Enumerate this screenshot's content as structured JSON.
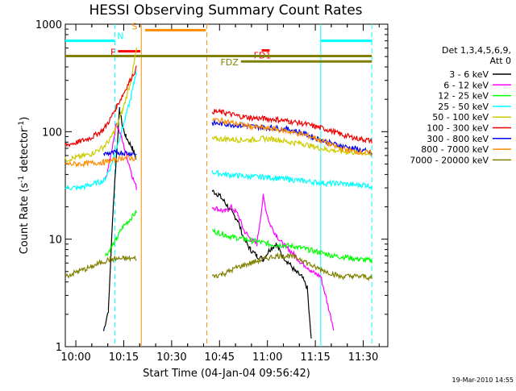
{
  "chart_data": {
    "type": "line",
    "title": "HESSI Observing Summary Count Rates",
    "xlabel": "Start Time (04-Jan-04 09:56:42)",
    "ylabel": "Count Rate (s",
    "ylabel_sup": "-1",
    "ylabel_tail": " detector",
    "ylabel_sup2": "-1",
    "ylabel_close": ")",
    "y_scale": "log",
    "ylim": [
      1,
      1000
    ],
    "xlim_minutes": [
      0,
      101
    ],
    "xlim_start": "09:56:42",
    "x_ticks": [
      "10:00",
      "10:15",
      "10:30",
      "10:45",
      "11:00",
      "11:15",
      "11:30"
    ],
    "x_tick_minutes": [
      3.3,
      18.3,
      33.3,
      48.3,
      63.3,
      78.3,
      93.3
    ],
    "y_ticks": [
      "1",
      "10",
      "100",
      "1000"
    ],
    "y_tick_values": [
      1,
      10,
      100,
      1000
    ],
    "legend_header": [
      "Det 1,3,4,5,6,9,",
      "Att 0"
    ],
    "legend_placement": "right",
    "timestamp": "19-Mar-2010 14:55",
    "series": [
      {
        "name": "3 - 6 keV",
        "color": "#000000",
        "points": [
          [
            12,
            1.4
          ],
          [
            13.5,
            2.2
          ],
          [
            15,
            20
          ],
          [
            16,
            60
          ],
          [
            17,
            160
          ],
          [
            18,
            110
          ],
          [
            19,
            90
          ],
          [
            21,
            70
          ],
          [
            22.3,
            55
          ],
          [
            46,
            28
          ],
          [
            48,
            26
          ],
          [
            50,
            22
          ],
          [
            52,
            18
          ],
          [
            54,
            15
          ],
          [
            56,
            10
          ],
          [
            58,
            8
          ],
          [
            60,
            7
          ],
          [
            62,
            6.5
          ],
          [
            64,
            8
          ],
          [
            66,
            9
          ],
          [
            68,
            7
          ],
          [
            70,
            6
          ],
          [
            72,
            5
          ],
          [
            74,
            4.5
          ],
          [
            75.8,
            3.5
          ],
          [
            76.5,
            1.8
          ],
          [
            77,
            1.2
          ]
        ]
      },
      {
        "name": "6 - 12 keV",
        "color": "#ff00ff",
        "points": [
          [
            12.5,
            35
          ],
          [
            14,
            55
          ],
          [
            16,
            120
          ],
          [
            17.5,
            90
          ],
          [
            18.5,
            70
          ],
          [
            20,
            50
          ],
          [
            21,
            38
          ],
          [
            22.3,
            30
          ],
          [
            46,
            20
          ],
          [
            48,
            19
          ],
          [
            50,
            18
          ],
          [
            52,
            20
          ],
          [
            54,
            17
          ],
          [
            56,
            12
          ],
          [
            58,
            10
          ],
          [
            60,
            9
          ],
          [
            62,
            25
          ],
          [
            63,
            18
          ],
          [
            64,
            14
          ],
          [
            66,
            11
          ],
          [
            68,
            9
          ],
          [
            70,
            8
          ],
          [
            72,
            7
          ],
          [
            74,
            6
          ],
          [
            76,
            5.5
          ],
          [
            77,
            5
          ],
          [
            80,
            4.5
          ],
          [
            84,
            1.5
          ]
        ]
      },
      {
        "name": "12 - 25 keV",
        "color": "#00ff00",
        "points": [
          [
            12.5,
            7
          ],
          [
            14,
            8
          ],
          [
            16,
            10
          ],
          [
            18,
            13
          ],
          [
            20,
            15
          ],
          [
            22.3,
            18
          ],
          [
            46,
            12
          ],
          [
            48,
            11.5
          ],
          [
            50,
            11
          ],
          [
            52,
            10.5
          ],
          [
            56,
            10
          ],
          [
            60,
            9.5
          ],
          [
            64,
            9
          ],
          [
            68,
            8.8
          ],
          [
            72,
            8.5
          ],
          [
            76,
            8
          ],
          [
            80,
            7.5
          ],
          [
            84,
            7
          ],
          [
            88,
            6.8
          ],
          [
            92,
            6.5
          ],
          [
            96,
            6.3
          ]
        ]
      },
      {
        "name": "25 - 50 keV",
        "color": "#00ffff",
        "points": [
          [
            0,
            30
          ],
          [
            4,
            30
          ],
          [
            8,
            32
          ],
          [
            12,
            35
          ],
          [
            14,
            45
          ],
          [
            16,
            70
          ],
          [
            18,
            110
          ],
          [
            20,
            180
          ],
          [
            21.5,
            280
          ],
          [
            22.3,
            380
          ],
          [
            46,
            42
          ],
          [
            50,
            40
          ],
          [
            54,
            39
          ],
          [
            58,
            38
          ],
          [
            62,
            38
          ],
          [
            66,
            37
          ],
          [
            70,
            36
          ],
          [
            74,
            35
          ],
          [
            78,
            34
          ],
          [
            82,
            33
          ],
          [
            86,
            33
          ],
          [
            90,
            32
          ],
          [
            94,
            32
          ],
          [
            96,
            31
          ]
        ]
      },
      {
        "name": "50 - 100 keV",
        "color": "#cccc00",
        "points": [
          [
            0,
            55
          ],
          [
            4,
            58
          ],
          [
            8,
            62
          ],
          [
            12,
            72
          ],
          [
            14,
            85
          ],
          [
            16,
            110
          ],
          [
            18,
            160
          ],
          [
            20,
            260
          ],
          [
            21.5,
            420
          ],
          [
            22.3,
            600
          ],
          [
            46,
            85
          ],
          [
            50,
            86
          ],
          [
            54,
            84
          ],
          [
            58,
            84
          ],
          [
            62,
            86
          ],
          [
            66,
            85
          ],
          [
            70,
            80
          ],
          [
            74,
            78
          ],
          [
            78,
            72
          ],
          [
            82,
            68
          ],
          [
            86,
            66
          ],
          [
            90,
            64
          ],
          [
            94,
            63
          ],
          [
            96,
            62
          ]
        ]
      },
      {
        "name": "100 - 300 keV",
        "color": "#ee0000",
        "points": [
          [
            0,
            75
          ],
          [
            4,
            80
          ],
          [
            8,
            88
          ],
          [
            10,
            95
          ],
          [
            12,
            105
          ],
          [
            14,
            130
          ],
          [
            16,
            170
          ],
          [
            18,
            220
          ],
          [
            20,
            290
          ],
          [
            22.3,
            390
          ],
          [
            46,
            155
          ],
          [
            50,
            150
          ],
          [
            54,
            140
          ],
          [
            58,
            135
          ],
          [
            62,
            132
          ],
          [
            66,
            130
          ],
          [
            70,
            125
          ],
          [
            74,
            120
          ],
          [
            78,
            112
          ],
          [
            82,
            105
          ],
          [
            86,
            95
          ],
          [
            90,
            88
          ],
          [
            94,
            84
          ],
          [
            96,
            82
          ]
        ]
      },
      {
        "name": "300 - 800 keV",
        "color": "#0000ee",
        "points": [
          [
            12,
            62
          ],
          [
            14,
            63
          ],
          [
            16,
            64
          ],
          [
            18,
            64
          ],
          [
            20,
            63
          ],
          [
            22.3,
            62
          ],
          [
            46,
            120
          ],
          [
            50,
            118
          ],
          [
            54,
            115
          ],
          [
            58,
            112
          ],
          [
            62,
            110
          ],
          [
            66,
            108
          ],
          [
            70,
            105
          ],
          [
            74,
            98
          ],
          [
            78,
            88
          ],
          [
            82,
            80
          ],
          [
            86,
            74
          ],
          [
            90,
            70
          ],
          [
            94,
            66
          ],
          [
            96,
            62
          ]
        ]
      },
      {
        "name": "800 - 7000 keV",
        "color": "#ff8c00",
        "points": [
          [
            0,
            50
          ],
          [
            4,
            50
          ],
          [
            8,
            51
          ],
          [
            12,
            52
          ],
          [
            14,
            53
          ],
          [
            16,
            55
          ],
          [
            18,
            57
          ],
          [
            20,
            57
          ],
          [
            22.3,
            56
          ],
          [
            46,
            130
          ],
          [
            50,
            125
          ],
          [
            54,
            118
          ],
          [
            58,
            112
          ],
          [
            62,
            108
          ],
          [
            66,
            105
          ],
          [
            70,
            100
          ],
          [
            74,
            95
          ],
          [
            78,
            88
          ],
          [
            82,
            78
          ],
          [
            86,
            70
          ],
          [
            90,
            66
          ],
          [
            94,
            64
          ],
          [
            96,
            63
          ]
        ]
      },
      {
        "name": "7000 - 20000 keV",
        "color": "#808000",
        "points": [
          [
            0,
            4.5
          ],
          [
            4,
            5
          ],
          [
            8,
            5.5
          ],
          [
            12,
            6.2
          ],
          [
            14,
            6.5
          ],
          [
            18,
            6.6
          ],
          [
            22.3,
            6.6
          ],
          [
            46,
            4.5
          ],
          [
            50,
            4.8
          ],
          [
            54,
            5.5
          ],
          [
            58,
            6
          ],
          [
            62,
            6.5
          ],
          [
            66,
            7
          ],
          [
            70,
            7
          ],
          [
            74,
            6.5
          ],
          [
            78,
            5.5
          ],
          [
            82,
            5
          ],
          [
            86,
            4.5
          ],
          [
            90,
            4.5
          ],
          [
            94,
            4.5
          ],
          [
            96,
            4.3
          ]
        ]
      }
    ],
    "annotations": [
      {
        "label": "N",
        "color": "#00ffff",
        "level": 700,
        "segments": [
          [
            0,
            15.5
          ],
          [
            80,
            96
          ]
        ]
      },
      {
        "label": "F",
        "color": "#ff0000",
        "level": 560,
        "segments": [
          [
            16.5,
            23.5
          ]
        ]
      },
      {
        "label": "S",
        "color": "#ff8c00",
        "level": 880,
        "segments": [
          [
            25,
            44
          ]
        ]
      },
      {
        "label": "FD1",
        "color": "#ff0000",
        "level": 570,
        "segments": [
          [
            61.5,
            64
          ]
        ]
      },
      {
        "label": "",
        "color": "#808000",
        "level": 505,
        "segments": [
          [
            0,
            96
          ]
        ]
      },
      {
        "label": "FDZ",
        "color": "#808000",
        "level": 450,
        "segments": [
          [
            55,
            96
          ]
        ]
      }
    ],
    "vlines": [
      {
        "minute": 15.5,
        "color": "#00ffff",
        "style": "dashed"
      },
      {
        "minute": 23.8,
        "color": "#ff8c00",
        "style": "solid"
      },
      {
        "minute": 44.3,
        "color": "#ff8c00",
        "style": "dashed"
      },
      {
        "minute": 80,
        "color": "#00ffff",
        "style": "solid"
      },
      {
        "minute": 96,
        "color": "#00ffff",
        "style": "dashed"
      }
    ]
  }
}
